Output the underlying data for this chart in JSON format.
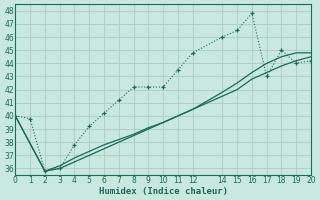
{
  "xlabel": "Humidex (Indice chaleur)",
  "bg_color": "#c8e8e0",
  "grid_color": "#b0d0c8",
  "line_color": "#1a6b5a",
  "xlim": [
    0,
    20
  ],
  "ylim": [
    35.5,
    48.5
  ],
  "yticks": [
    36,
    37,
    38,
    39,
    40,
    41,
    42,
    43,
    44,
    45,
    46,
    47,
    48
  ],
  "xticks": [
    0,
    1,
    2,
    3,
    4,
    5,
    6,
    7,
    8,
    9,
    10,
    11,
    12,
    14,
    15,
    16,
    17,
    18,
    19,
    20
  ],
  "curve1_x": [
    0,
    1,
    2,
    3,
    4,
    5,
    6,
    7,
    8,
    9,
    10,
    11,
    12,
    14,
    15,
    16,
    17,
    18,
    19,
    20
  ],
  "curve1_y": [
    40.0,
    39.8,
    35.8,
    36.0,
    37.8,
    39.2,
    40.2,
    41.2,
    42.2,
    42.2,
    42.2,
    43.5,
    44.8,
    46.0,
    46.5,
    47.8,
    43.0,
    45.0,
    44.0,
    44.2
  ],
  "curve2_x": [
    0,
    2,
    3,
    4,
    5,
    6,
    7,
    8,
    9,
    10,
    11,
    12,
    14,
    15,
    16,
    17,
    18,
    19,
    20
  ],
  "curve2_y": [
    40.0,
    35.8,
    36.2,
    36.8,
    37.3,
    37.8,
    38.2,
    38.6,
    39.1,
    39.5,
    40.0,
    40.5,
    41.5,
    42.0,
    42.8,
    43.3,
    43.8,
    44.2,
    44.5
  ],
  "curve3_x": [
    0,
    2,
    3,
    4,
    5,
    6,
    7,
    8,
    9,
    10,
    11,
    12,
    14,
    15,
    16,
    17,
    18,
    19,
    20
  ],
  "curve3_y": [
    40.0,
    35.8,
    36.0,
    36.5,
    37.0,
    37.5,
    38.0,
    38.5,
    39.0,
    39.5,
    40.0,
    40.5,
    41.8,
    42.5,
    43.3,
    44.0,
    44.5,
    44.8,
    44.8
  ]
}
